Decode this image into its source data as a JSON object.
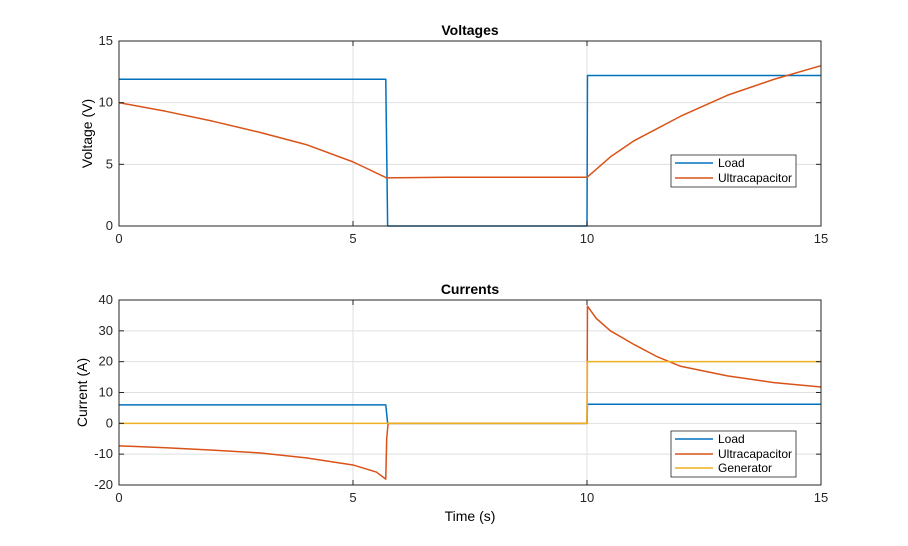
{
  "colors": {
    "load": "#0072BD",
    "ultracapacitor": "#D95319",
    "generator": "#EDB120",
    "grid": "#DFDFDF",
    "axis": "#262626"
  },
  "chart_data": [
    {
      "type": "line",
      "title": "Voltages",
      "xlabel": "",
      "ylabel": "Voltage (V)",
      "xlim": [
        0,
        15
      ],
      "ylim": [
        0,
        15
      ],
      "xticks": [
        "0",
        "5",
        "10",
        "15"
      ],
      "yticks": [
        "0",
        "5",
        "10",
        "15"
      ],
      "grid": true,
      "legend_position": "right",
      "series": [
        {
          "name": "Load",
          "color": "#0072BD",
          "x": [
            0,
            5.7,
            5.72,
            5.74,
            10,
            10.01,
            15
          ],
          "y": [
            11.9,
            11.9,
            6,
            0,
            0,
            12.2,
            12.2
          ]
        },
        {
          "name": "Ultracapacitor",
          "color": "#D95319",
          "x": [
            0,
            1,
            2,
            3,
            4,
            5,
            5.72,
            7,
            8,
            9,
            10,
            10.5,
            11,
            12,
            13,
            14,
            15
          ],
          "y": [
            10.0,
            9.3,
            8.5,
            7.6,
            6.6,
            5.2,
            3.9,
            3.95,
            3.95,
            3.95,
            3.95,
            5.6,
            6.9,
            8.9,
            10.6,
            11.9,
            13.0
          ]
        }
      ]
    },
    {
      "type": "line",
      "title": "Currents",
      "xlabel": "Time (s)",
      "ylabel": "Current (A)",
      "xlim": [
        0,
        15
      ],
      "ylim": [
        -20,
        40
      ],
      "xticks": [
        "0",
        "5",
        "10",
        "15"
      ],
      "yticks": [
        "-20",
        "-10",
        "0",
        "10",
        "20",
        "30",
        "40"
      ],
      "grid": true,
      "legend_position": "bottom-right",
      "series": [
        {
          "name": "Load",
          "color": "#0072BD",
          "x": [
            0,
            5.7,
            5.74,
            10,
            10.01,
            15
          ],
          "y": [
            6,
            6,
            0,
            0,
            6.2,
            6.2
          ]
        },
        {
          "name": "Ultracapacitor",
          "color": "#D95319",
          "x": [
            0,
            1,
            2,
            3,
            4,
            5,
            5.5,
            5.7,
            5.72,
            5.75,
            10,
            10.01,
            10.2,
            10.5,
            11,
            11.5,
            12,
            13,
            14,
            15
          ],
          "y": [
            -7.3,
            -7.9,
            -8.7,
            -9.6,
            -11.2,
            -13.5,
            -15.8,
            -18.1,
            -5,
            0,
            0,
            38,
            34,
            30,
            25.6,
            21.6,
            18.5,
            15.4,
            13.2,
            11.8
          ]
        },
        {
          "name": "Generator",
          "color": "#EDB120",
          "x": [
            0,
            10,
            10.01,
            15
          ],
          "y": [
            0,
            0,
            20,
            20
          ]
        }
      ]
    }
  ]
}
